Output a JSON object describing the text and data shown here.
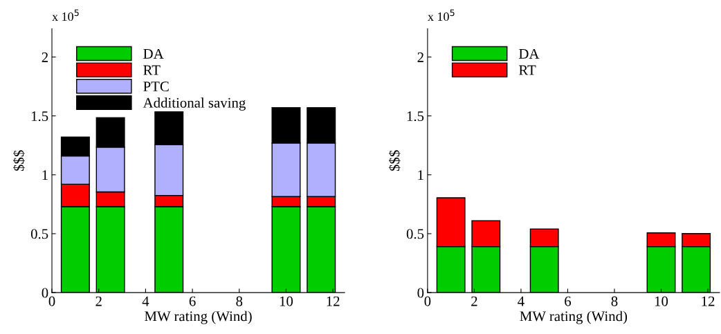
{
  "chart_data": [
    {
      "type": "bar",
      "stacked": true,
      "x": [
        1,
        2.5,
        5,
        10,
        11.5
      ],
      "xlabel": "MW rating (Wind)",
      "ylabel": "$$$",
      "annotations": [
        "x 10$^{5}$"
      ],
      "xlim": [
        0,
        12.5
      ],
      "xticks": [
        0,
        2,
        4,
        6,
        8,
        10,
        12
      ],
      "ylim": [
        0,
        2.24
      ],
      "yticks": [
        0,
        0.5,
        1,
        1.5,
        2
      ],
      "legend": "top left",
      "grid": false,
      "series": [
        {
          "name": "DA",
          "color": "#00cc00",
          "values": [
            0.73,
            0.73,
            0.73,
            0.73,
            0.73
          ]
        },
        {
          "name": "RT",
          "color": "#ff0000",
          "values": [
            0.19,
            0.125,
            0.095,
            0.085,
            0.085
          ]
        },
        {
          "name": "PTC",
          "color": "#b0b0ff",
          "values": [
            0.24,
            0.38,
            0.43,
            0.455,
            0.455
          ]
        },
        {
          "name": "Additional saving",
          "color": "#000000",
          "values": [
            0.16,
            0.25,
            0.28,
            0.3,
            0.3
          ]
        }
      ]
    },
    {
      "type": "bar",
      "stacked": true,
      "x": [
        1,
        2.5,
        5,
        10,
        11.5
      ],
      "xlabel": "MW rating (Wind)",
      "ylabel": "$$$",
      "annotations": [
        "x 10$^{5}$"
      ],
      "xlim": [
        0,
        12.5
      ],
      "xticks": [
        0,
        2,
        4,
        6,
        8,
        10,
        12
      ],
      "ylim": [
        0,
        2.24
      ],
      "yticks": [
        0,
        0.5,
        1,
        1.5,
        2
      ],
      "legend": "top left",
      "grid": false,
      "series": [
        {
          "name": "DA",
          "color": "#00cc00",
          "values": [
            0.39,
            0.39,
            0.39,
            0.39,
            0.39
          ]
        },
        {
          "name": "RT",
          "color": "#ff0000",
          "values": [
            0.415,
            0.22,
            0.15,
            0.117,
            0.111
          ]
        }
      ]
    }
  ]
}
